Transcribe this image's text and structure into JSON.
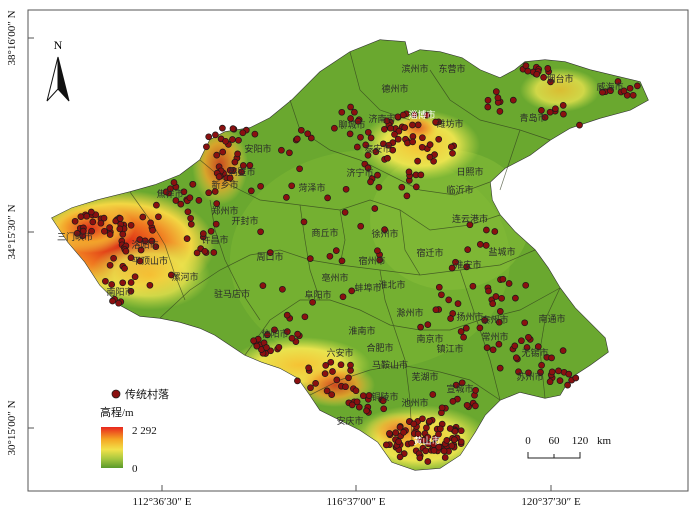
{
  "north_arrow": {
    "label": "N",
    "icon": "north-arrow-icon"
  },
  "lat_ticks": [
    "38°16′00″ N",
    "34°15′30″ N",
    "30°15′00″ N"
  ],
  "lon_ticks": [
    "112°36′30″ E",
    "116°37′00″ E",
    "120°37′30″ E"
  ],
  "legend": {
    "points_label": "传统村落",
    "point_color": "#8a1010",
    "elevation_title": "高程/m",
    "elevation_max": "2 292",
    "elevation_min": "0",
    "gradient_colors": [
      "#e8261e",
      "#f5a623",
      "#f2e14a",
      "#a6c73f",
      "#5a9a2a"
    ]
  },
  "scale_bar": {
    "labels": [
      "0",
      "60",
      "120"
    ],
    "unit": "km"
  },
  "colors": {
    "lowland": "#6aa82f",
    "frame": "#555555"
  },
  "cities": [
    "滨州市",
    "东营市",
    "德州市",
    "烟台市",
    "威海市",
    "聊城市",
    "济南市",
    "淄博市",
    "潍坊市",
    "青岛市",
    "泰安市",
    "安阳市",
    "鹤壁市",
    "新乡市",
    "济宁市",
    "日照市",
    "菏泽市",
    "临沂市",
    "焦作市",
    "郑州市",
    "连云港市",
    "开封市",
    "洛阳市",
    "许昌市",
    "商丘市",
    "徐州市",
    "三门峡市",
    "平顶山市",
    "周口市",
    "宿迁市",
    "盐城市",
    "宿州市",
    "淮安市",
    "南阳市",
    "驻马店市",
    "阜阳市",
    "蚌埠市",
    "亳州市",
    "扬州市",
    "滁州市",
    "信阳市",
    "淮南市",
    "镇江市",
    "南通市",
    "六安市",
    "合肥市",
    "南京市",
    "常州市",
    "苏州市",
    "芜湖市",
    "马鞍山市",
    "安庆市",
    "铜陵市",
    "宣城市",
    "池州市",
    "黄山市",
    "泰州市",
    "淮北市",
    "漯河市",
    "无锡市"
  ]
}
